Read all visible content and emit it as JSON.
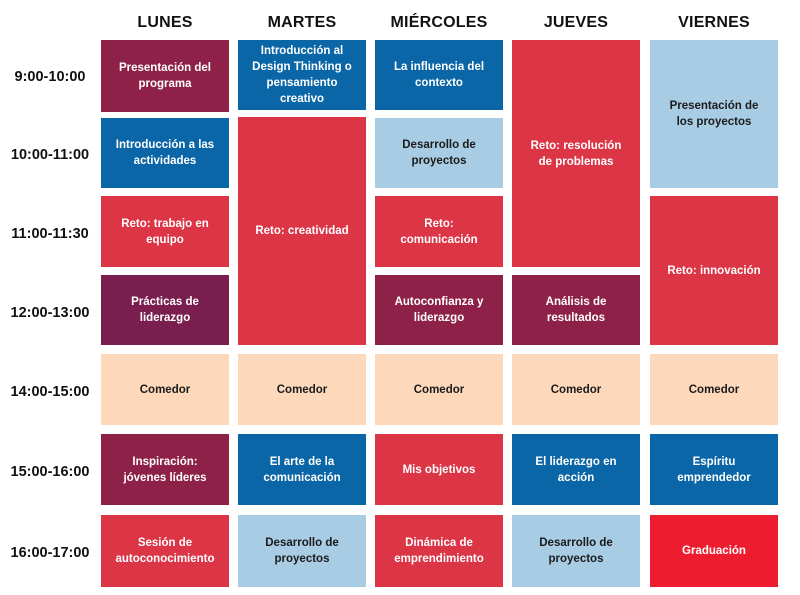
{
  "days": [
    "LUNES",
    "MARTES",
    "MIÉRCOLES",
    "JUEVES",
    "VIERNES"
  ],
  "times": [
    "9:00-10:00",
    "10:00-11:00",
    "11:00-11:30",
    "12:00-13:00",
    "14:00-15:00",
    "15:00-16:00",
    "16:00-17:00"
  ],
  "colors": {
    "crimson": "#DC3545",
    "maroon": "#8E2148",
    "plum": "#7A1E50",
    "blue": "#0A66A6",
    "light_blue": "#A8CCE4",
    "peach": "#FDD8BA",
    "red": "#ED1C2E"
  },
  "cells": [
    {
      "text": "Presentación del programa",
      "color": "maroon"
    },
    {
      "text": "Introducción a las actividades",
      "color": "blue"
    },
    {
      "text": "Reto: trabajo en equipo",
      "color": "crimson"
    },
    {
      "text": "Prácticas de liderazgo",
      "color": "plum"
    },
    {
      "text": "Comedor",
      "color": "peach"
    },
    {
      "text": "Inspiración: jóvenes líderes",
      "color": "maroon"
    },
    {
      "text": "Sesión de autoconocimiento",
      "color": "crimson"
    },
    {
      "text": "Introducción al Design Thinking o pensamiento creativo",
      "color": "blue"
    },
    {
      "text": "Reto: creatividad",
      "color": "crimson"
    },
    {
      "text": "Comedor",
      "color": "peach"
    },
    {
      "text": "El arte de la comunicación",
      "color": "blue"
    },
    {
      "text": "Desarrollo de proyectos",
      "color": "light_blue"
    },
    {
      "text": "La influencia del contexto",
      "color": "blue"
    },
    {
      "text": "Desarrollo de proyectos",
      "color": "light_blue"
    },
    {
      "text": "Reto: comunicación",
      "color": "crimson"
    },
    {
      "text": "Autoconfianza y liderazgo",
      "color": "maroon"
    },
    {
      "text": "Comedor",
      "color": "peach"
    },
    {
      "text": "Mis objetivos",
      "color": "crimson"
    },
    {
      "text": "Dinámica de emprendimiento",
      "color": "crimson"
    },
    {
      "text": "Reto: resolución de problemas",
      "color": "crimson"
    },
    {
      "text": "Análisis de resultados",
      "color": "maroon"
    },
    {
      "text": "Comedor",
      "color": "peach"
    },
    {
      "text": "El liderazgo en acción",
      "color": "blue"
    },
    {
      "text": "Desarrollo de proyectos",
      "color": "light_blue"
    },
    {
      "text": "Presentación de los proyectos",
      "color": "light_blue"
    },
    {
      "text": "Reto: innovación",
      "color": "crimson"
    },
    {
      "text": "Comedor",
      "color": "peach"
    },
    {
      "text": "Espíritu emprendedor",
      "color": "blue"
    },
    {
      "text": "Graduación",
      "color": "red"
    }
  ]
}
